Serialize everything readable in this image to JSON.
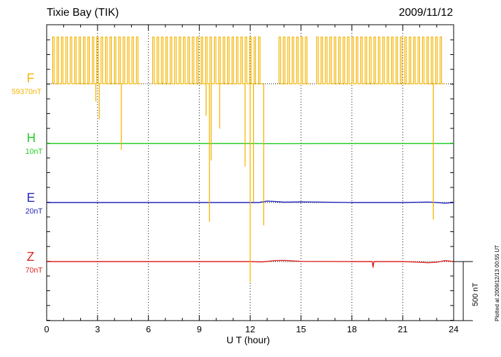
{
  "header": {
    "station": "Tixie Bay (TIK)",
    "date": "2009/11/12"
  },
  "footer": {
    "plotted": "Plotted at 2009/12/13 00:55 UT",
    "scale_bar": "500 nT"
  },
  "chart_data": {
    "type": "line",
    "title": "Tixie Bay (TIK)",
    "xlabel": "U T (hour)",
    "xlim": [
      0,
      24
    ],
    "xticks": [
      "0",
      "3",
      "6",
      "9",
      "12",
      "15",
      "18",
      "21",
      "24"
    ],
    "scale_bar_nT": 500,
    "grid": true,
    "series": [
      {
        "name": "F",
        "baseline": "59370nT",
        "color": "#f5b400",
        "note": "square-wave between baseline and ~+340 nT with downward spikes",
        "gaps": [
          [
            5.4,
            6.2
          ],
          [
            12.6,
            13.7
          ],
          [
            15.5,
            15.9
          ],
          [
            23.4,
            24.0
          ]
        ],
        "spikes": [
          [
            2.9,
            -150
          ],
          [
            3.1,
            -300
          ],
          [
            4.4,
            -560
          ],
          [
            9.4,
            -270
          ],
          [
            9.6,
            -1170
          ],
          [
            9.7,
            -650
          ],
          [
            10.2,
            -380
          ],
          [
            11.7,
            -700
          ],
          [
            12.0,
            -1680
          ],
          [
            12.2,
            -1000
          ],
          [
            12.8,
            -1200
          ],
          [
            22.8,
            -1150
          ]
        ]
      },
      {
        "name": "H",
        "baseline": "10nT",
        "color": "#22cc22",
        "x": [
          0,
          6,
          12,
          13,
          18,
          24
        ],
        "y": [
          0,
          0,
          0,
          -2,
          0,
          0
        ]
      },
      {
        "name": "E",
        "baseline": "20nT",
        "color": "#2222bb",
        "x": [
          0,
          6,
          12,
          12.5,
          13,
          13.5,
          14,
          15,
          18,
          21,
          22.5,
          23,
          23.5,
          24
        ],
        "y": [
          0,
          0,
          0,
          0,
          12,
          8,
          3,
          5,
          0,
          0,
          4,
          0,
          -5,
          0
        ]
      },
      {
        "name": "Z",
        "baseline": "70nT",
        "color": "#dd2222",
        "x": [
          0,
          6,
          12,
          12.7,
          13.5,
          14,
          15,
          18,
          19.2,
          19.25,
          19.3,
          21,
          22,
          22.5,
          23,
          23.5,
          24
        ],
        "y": [
          0,
          0,
          0,
          -3,
          8,
          10,
          2,
          0,
          0,
          -50,
          0,
          0,
          -5,
          -10,
          -5,
          8,
          0
        ]
      }
    ]
  }
}
